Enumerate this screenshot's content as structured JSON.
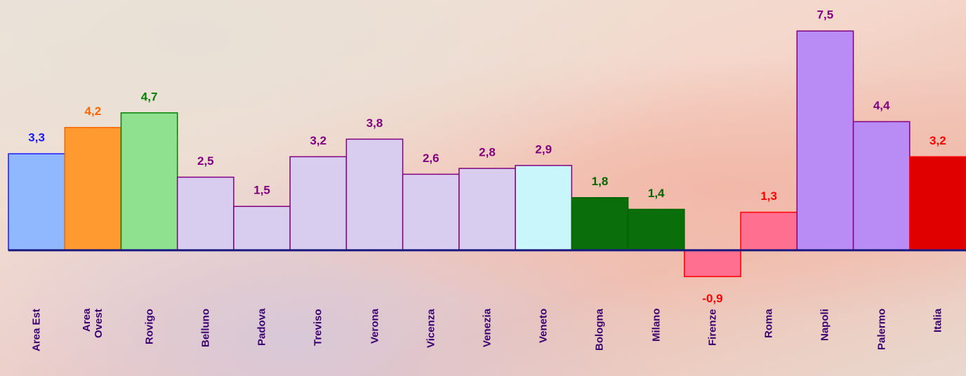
{
  "chart_data": {
    "type": "bar",
    "categories": [
      "Area Est",
      "Area Ovest",
      "Rovigo",
      "Belluno",
      "Padova",
      "Treviso",
      "Verona",
      "Vicenza",
      "Venezia",
      "Veneto",
      "Bologna",
      "Milano",
      "Firenze",
      "Roma",
      "Napoli",
      "Palermo",
      "Italia"
    ],
    "values": [
      3.3,
      4.2,
      4.7,
      2.5,
      1.5,
      3.2,
      3.8,
      2.6,
      2.8,
      2.9,
      1.8,
      1.4,
      -0.9,
      1.3,
      7.5,
      4.4,
      3.2
    ],
    "value_labels": [
      "3,3",
      "4,2",
      "4,7",
      "2,5",
      "1,5",
      "3,2",
      "3,8",
      "2,6",
      "2,8",
      "2,9",
      "1,8",
      "1,4",
      "-0,9",
      "1,3",
      "7,5",
      "4,4",
      "3,2"
    ],
    "colors": [
      "#8fb8ff",
      "#ff9a30",
      "#8fe08f",
      "#d8cdee",
      "#d8cdee",
      "#d8cdee",
      "#d8cdee",
      "#d8cdee",
      "#d8cdee",
      "#c8f6fb",
      "#0a6e0a",
      "#0a6e0a",
      "#ff6f8f",
      "#ff6f8f",
      "#b98cf5",
      "#b98cf5",
      "#e00000"
    ],
    "label_colors": [
      "#1a1aff",
      "#ff6600",
      "#008000",
      "#800080",
      "#800080",
      "#800080",
      "#800080",
      "#800080",
      "#800080",
      "#800080",
      "#006400",
      "#006400",
      "#ff0000",
      "#ff0000",
      "#800080",
      "#800080",
      "#ff0000"
    ],
    "ylim": [
      -4.3,
      8.56
    ]
  }
}
